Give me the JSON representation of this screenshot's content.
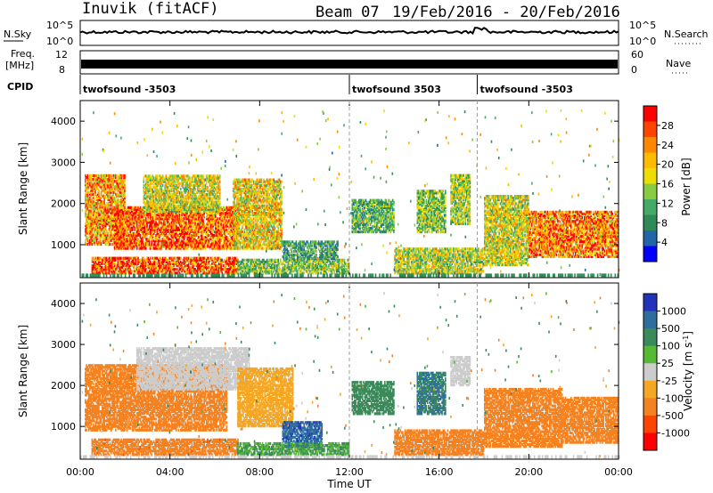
{
  "header": {
    "station": "Inuvik (fitACF)",
    "beam": "Beam 07",
    "date_range": "19/Feb/2016 - 20/Feb/2016"
  },
  "top_panels": {
    "nsky_label": "N.Sky",
    "nsky_ticks": [
      "10^5",
      "10^0"
    ],
    "nsearch_label": "N.Search",
    "nsearch_ticks": [
      "10^5",
      "10^0"
    ],
    "freq_label_1": "Freq.",
    "freq_label_2": "[MHz]",
    "freq_ticks": [
      "12",
      "8"
    ],
    "nave_label": "Nave",
    "nave_ticks": [
      "60",
      "0"
    ],
    "cpid_label": "CPID",
    "cpid_segments": [
      {
        "name": "twofsound -3503",
        "start_hour": 0
      },
      {
        "name": "twofsound 3503",
        "start_hour": 12
      },
      {
        "name": "twofsound -3503",
        "start_hour": 17.7
      }
    ]
  },
  "x_axis": {
    "label": "Time UT",
    "ticks": [
      "00:00",
      "04:00",
      "08:00",
      "12:00",
      "16:00",
      "20:00",
      "00:00"
    ]
  },
  "chart_data": [
    {
      "type": "heatmap",
      "ylabel": "Slant Range [km]",
      "xlabel": "",
      "x_range_hours": [
        0,
        24
      ],
      "ylim": [
        200,
        4500
      ],
      "y_ticks": [
        "4000",
        "3000",
        "2000",
        "1000"
      ],
      "y_tick_values": [
        4000,
        3000,
        2000,
        1000
      ],
      "colorbar": {
        "label": "Power [dB]",
        "ticks": [
          "28",
          "24",
          "20",
          "16",
          "12",
          "8",
          "4"
        ],
        "colors": [
          "#ff0000",
          "#ff4400",
          "#ff8800",
          "#ffbb00",
          "#eedd00",
          "#88cc44",
          "#44aa66",
          "#2e8b57",
          "#2266aa",
          "#0000ff"
        ]
      },
      "regions": [
        {
          "t0": 0.2,
          "t1": 2.0,
          "r0": 1000,
          "r1": 2700,
          "v": 22
        },
        {
          "t0": 1.5,
          "t1": 5.0,
          "r0": 900,
          "r1": 1900,
          "v": 27
        },
        {
          "t0": 5.0,
          "t1": 7.0,
          "r0": 900,
          "r1": 1900,
          "v": 25
        },
        {
          "t0": 2.8,
          "t1": 6.2,
          "r0": 1800,
          "r1": 2700,
          "v": 16
        },
        {
          "t0": 6.8,
          "t1": 9.0,
          "r0": 900,
          "r1": 2600,
          "v": 18
        },
        {
          "t0": 0.5,
          "t1": 7.0,
          "r0": 300,
          "r1": 700,
          "v": 27
        },
        {
          "t0": 7.0,
          "t1": 12.0,
          "r0": 300,
          "r1": 650,
          "v": 12
        },
        {
          "t0": 9.0,
          "t1": 11.5,
          "r0": 650,
          "r1": 1100,
          "v": 9
        },
        {
          "t0": 12.1,
          "t1": 14.0,
          "r0": 1300,
          "r1": 2100,
          "v": 10
        },
        {
          "t0": 15.0,
          "t1": 16.3,
          "r0": 1300,
          "r1": 2300,
          "v": 12
        },
        {
          "t0": 16.5,
          "t1": 17.4,
          "r0": 1500,
          "r1": 2700,
          "v": 14
        },
        {
          "t0": 14.0,
          "t1": 18.0,
          "r0": 300,
          "r1": 900,
          "v": 15
        },
        {
          "t0": 18.0,
          "t1": 20.0,
          "r0": 500,
          "r1": 2200,
          "v": 16
        },
        {
          "t0": 20.0,
          "t1": 24.0,
          "r0": 700,
          "r1": 1800,
          "v": 24
        }
      ]
    },
    {
      "type": "heatmap",
      "ylabel": "Slant Range [km]",
      "xlabel": "Time UT",
      "x_range_hours": [
        0,
        24
      ],
      "ylim": [
        200,
        4500
      ],
      "y_ticks": [
        "4000",
        "3000",
        "2000",
        "1000"
      ],
      "y_tick_values": [
        4000,
        3000,
        2000,
        1000
      ],
      "colorbar": {
        "label": "Velocity [m s^-1]",
        "ticks": [
          "1000",
          "500",
          "100",
          "25",
          "-25",
          "-100",
          "-500",
          "-1000"
        ],
        "colors": [
          "#2233bb",
          "#2e6e9e",
          "#3a8a5a",
          "#55bb33",
          "#cccccc",
          "#f5a623",
          "#f58220",
          "#ff4400",
          "#ff0000"
        ]
      },
      "regions": [
        {
          "t0": 0.2,
          "t1": 6.5,
          "r0": 900,
          "r1": 2500,
          "v": -300
        },
        {
          "t0": 2.5,
          "t1": 7.5,
          "r0": 1900,
          "r1": 2900,
          "v": 0
        },
        {
          "t0": 7.0,
          "t1": 9.5,
          "r0": 1000,
          "r1": 2400,
          "v": -50
        },
        {
          "t0": 9.0,
          "t1": 10.8,
          "r0": 500,
          "r1": 1100,
          "v": 600
        },
        {
          "t0": 0.5,
          "t1": 7.0,
          "r0": 300,
          "r1": 700,
          "v": -400
        },
        {
          "t0": 7.0,
          "t1": 12.0,
          "r0": 300,
          "r1": 600,
          "v": 60
        },
        {
          "t0": 12.1,
          "t1": 14.0,
          "r0": 1300,
          "r1": 2100,
          "v": 200
        },
        {
          "t0": 15.0,
          "t1": 16.3,
          "r0": 1300,
          "r1": 2300,
          "v": 300
        },
        {
          "t0": 16.5,
          "t1": 17.4,
          "r0": 2000,
          "r1": 2700,
          "v": 0
        },
        {
          "t0": 14.0,
          "t1": 18.0,
          "r0": 300,
          "r1": 900,
          "v": -300
        },
        {
          "t0": 18.0,
          "t1": 21.5,
          "r0": 500,
          "r1": 1900,
          "v": -300
        },
        {
          "t0": 21.5,
          "t1": 24.0,
          "r0": 600,
          "r1": 1700,
          "v": -350
        }
      ]
    }
  ]
}
